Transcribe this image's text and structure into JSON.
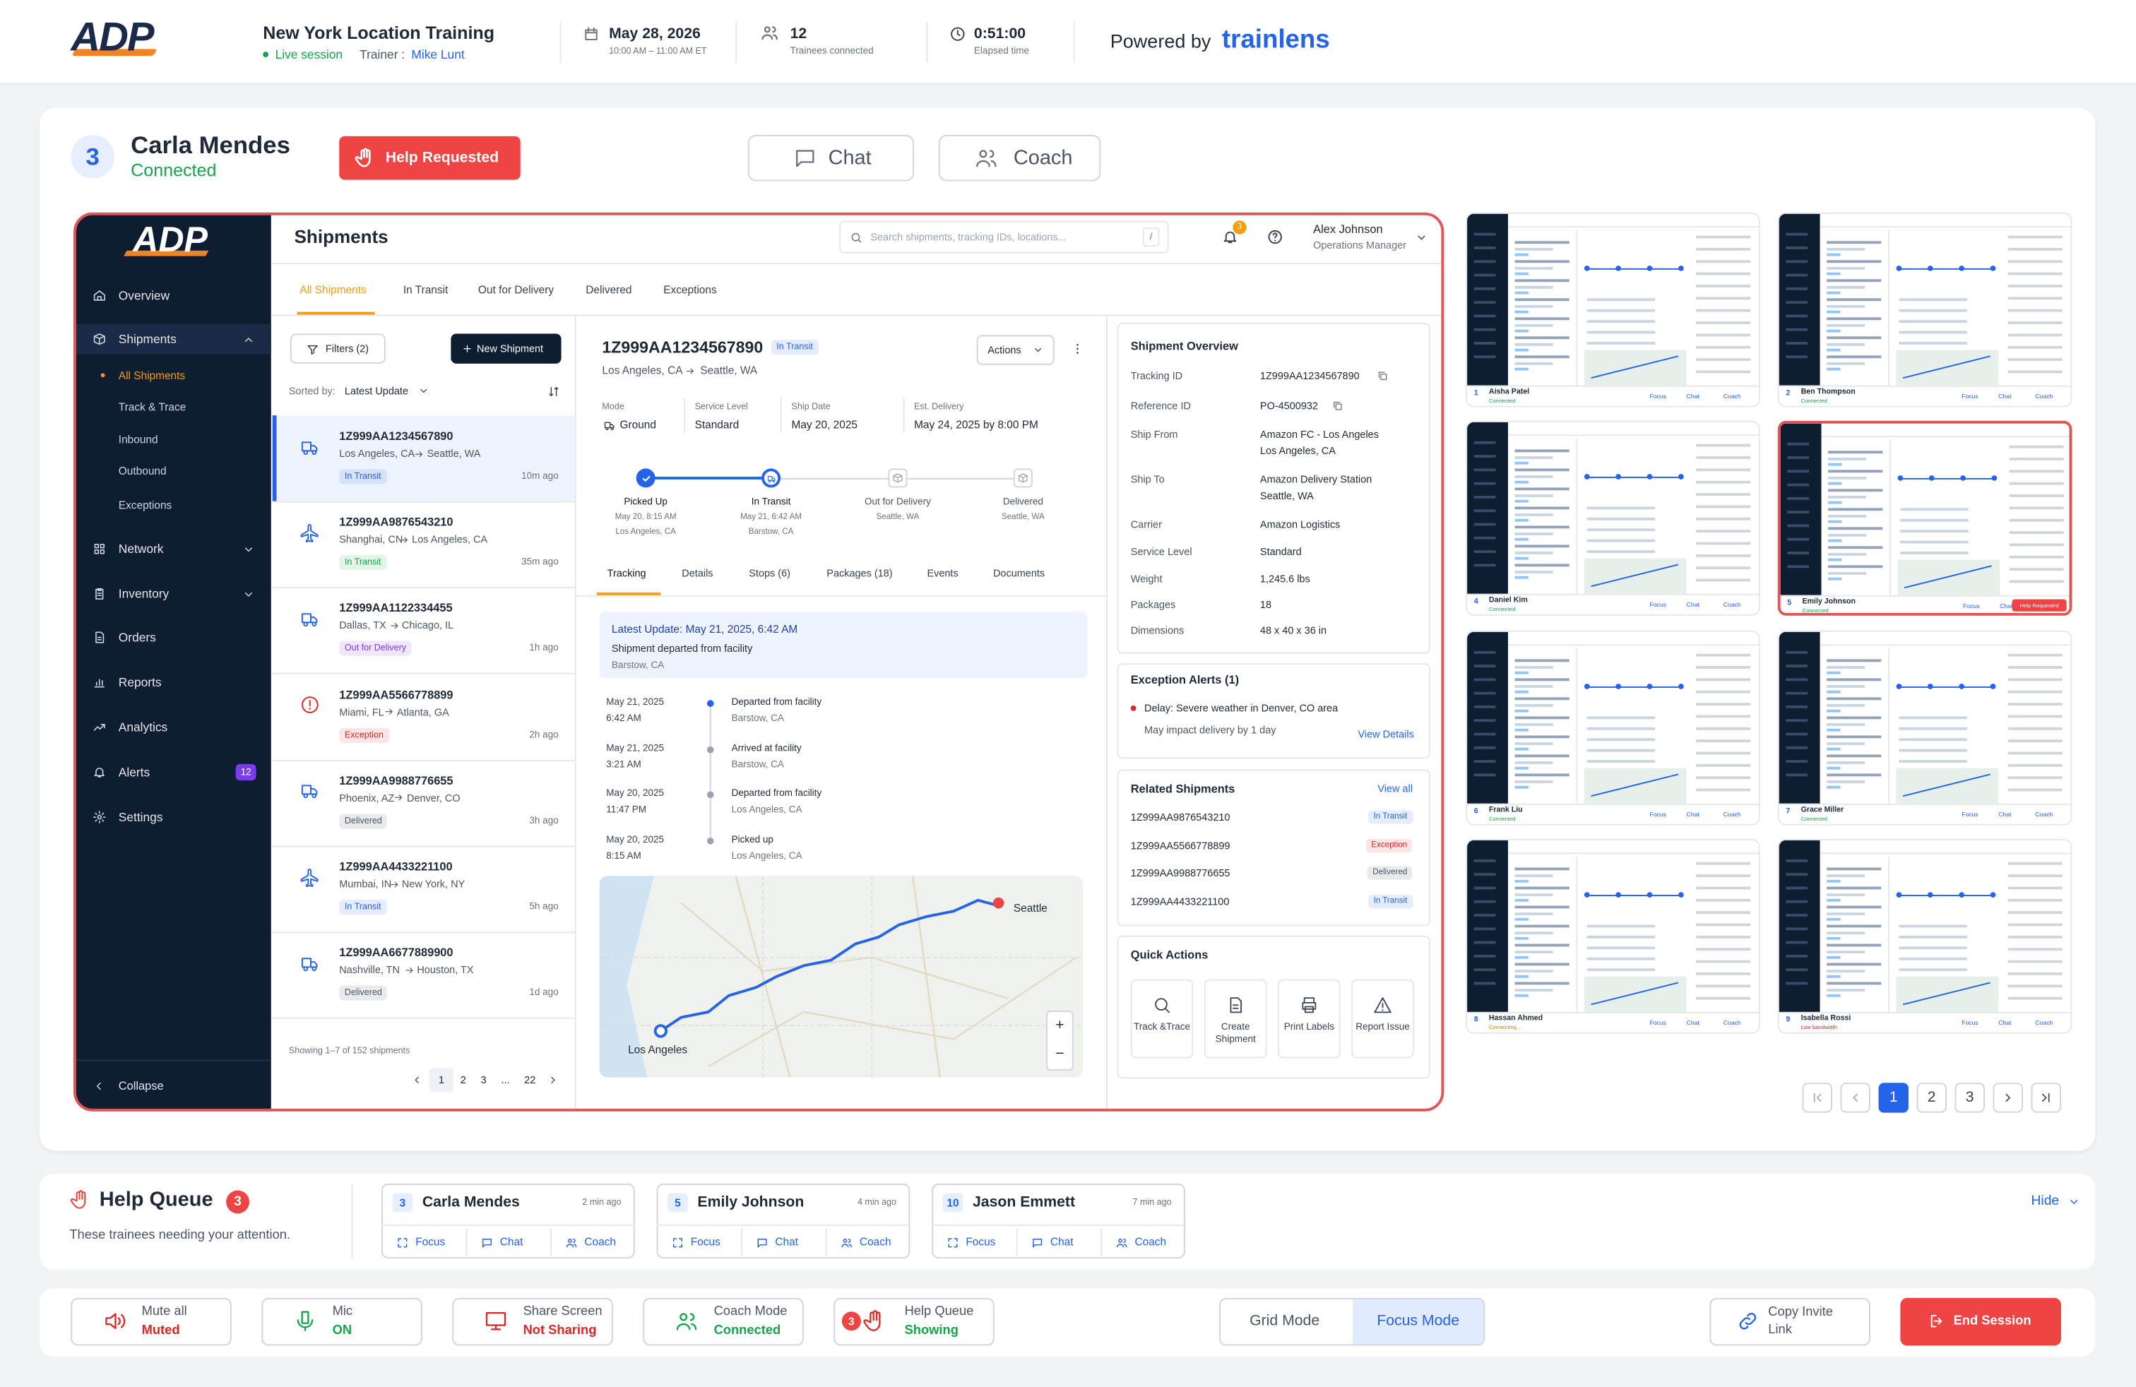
{
  "header": {
    "logo": "ADP",
    "session_title": "New York Location Training",
    "status": "Live session",
    "trainer_label": "Trainer :",
    "trainer": "Mike Lunt",
    "date": "May 28, 2026",
    "time_range": "10:00 AM – 11:00 AM ET",
    "trainees": "12",
    "trainees_label": "Trainees connected",
    "elapsed": "0:51:00",
    "elapsed_label": "Elapsed time",
    "powered_by": "Powered by",
    "brand": "trainlens"
  },
  "focus": {
    "number": "3",
    "name": "Carla Mendes",
    "status": "Connected",
    "help": "Help Requested",
    "chat": "Chat",
    "coach": "Coach"
  },
  "app": {
    "logo": "ADP",
    "nav": [
      "Overview",
      "Shipments",
      "Network",
      "Inventory",
      "Orders",
      "Reports",
      "Analytics",
      "Alerts",
      "Settings"
    ],
    "sub_nav": [
      "All Shipments",
      "Track & Trace",
      "Inbound",
      "Outbound",
      "Exceptions"
    ],
    "alerts_badge": "12",
    "collapse": "Collapse",
    "page_title": "Shipments",
    "search_placeholder": "Search shipments, tracking IDs, locations...",
    "search_key": "/",
    "notifications": "3",
    "user_name": "Alex Johnson",
    "user_role": "Operations Manager",
    "tabs": [
      "All Shipments",
      "In Transit",
      "Out for Delivery",
      "Delivered",
      "Exceptions"
    ],
    "list": {
      "filters": "Filters (2)",
      "new_shipment": "New Shipment",
      "sorted_label": "Sorted by:",
      "sorted_value": "Latest Update",
      "items": [
        {
          "id": "1Z999AA1234567890",
          "from": "Los Angeles, CA",
          "to": "Seattle, WA",
          "status": "In Transit",
          "status_color": "#2563eb",
          "time": "10m ago"
        },
        {
          "id": "1Z999AA9876543210",
          "from": "Shanghai, CN",
          "to": "Los Angeles, CA",
          "status": "In Transit",
          "status_color": "#16a34a",
          "time": "35m ago"
        },
        {
          "id": "1Z999AA1122334455",
          "from": "Dallas, TX",
          "to": "Chicago, IL",
          "status": "Out for Delivery",
          "status_color": "#7c3aed",
          "time": "1h ago"
        },
        {
          "id": "1Z999AA5566778899",
          "from": "Miami, FL",
          "to": "Atlanta, GA",
          "status": "Exception",
          "status_color": "#dc2626",
          "time": "2h ago"
        },
        {
          "id": "1Z999AA9988776655",
          "from": "Phoenix, AZ",
          "to": "Denver, CO",
          "status": "Delivered",
          "status_color": "#4b5563",
          "time": "3h ago"
        },
        {
          "id": "1Z999AA4433221100",
          "from": "Mumbai, IN",
          "to": "New York, NY",
          "status": "In Transit",
          "status_color": "#2563eb",
          "time": "5h ago"
        },
        {
          "id": "1Z999AA6677889900",
          "from": "Nashville, TN",
          "to": "Houston, TX",
          "status": "Delivered",
          "status_color": "#4b5563",
          "time": "1d ago"
        }
      ],
      "showing": "Showing 1–7 of 152 shipments",
      "pages": [
        "1",
        "2",
        "3",
        "...",
        "22"
      ]
    },
    "detail": {
      "id": "1Z999AA1234567890",
      "status": "In Transit",
      "from": "Los Angeles, CA",
      "to": "Seattle, WA",
      "actions": "Actions",
      "meta": [
        {
          "label": "Mode",
          "value": "Ground"
        },
        {
          "label": "Service Level",
          "value": "Standard"
        },
        {
          "label": "Ship Date",
          "value": "May 20, 2025"
        },
        {
          "label": "Est. Delivery",
          "value": "May 24, 2025 by 8:00 PM"
        }
      ],
      "steps": [
        {
          "title": "Picked Up",
          "date": "May 20, 8:15 AM",
          "place": "Los Angeles, CA"
        },
        {
          "title": "In Transit",
          "date": "May 21, 6:42 AM",
          "place": "Barstow, CA"
        },
        {
          "title": "Out for Delivery",
          "place": "Seattle, WA"
        },
        {
          "title": "Delivered",
          "place": "Seattle, WA"
        }
      ],
      "tabs": [
        "Tracking",
        "Details",
        "Stops (6)",
        "Packages (18)",
        "Events",
        "Documents"
      ],
      "latest": {
        "title": "Latest Update: May 21, 2025, 6:42 AM",
        "text": "Shipment departed from facility",
        "place": "Barstow, CA"
      },
      "events": [
        {
          "date": "May 21, 2025",
          "time": "6:42 AM",
          "text": "Departed from facility",
          "place": "Barstow, CA"
        },
        {
          "date": "May 21, 2025",
          "time": "3:21 AM",
          "text": "Arrived at facility",
          "place": "Barstow, CA"
        },
        {
          "date": "May 20, 2025",
          "time": "11:47 PM",
          "text": "Departed from facility",
          "place": "Los Angeles, CA"
        },
        {
          "date": "May 20, 2025",
          "time": "8:15 AM",
          "text": "Picked up",
          "place": "Los Angeles, CA"
        }
      ],
      "map": {
        "destination": "Seattle",
        "origin": "Los Angeles",
        "zoom_in": "+",
        "zoom_out": "−"
      }
    },
    "overview": {
      "title": "Shipment Overview",
      "rows": [
        {
          "label": "Tracking ID",
          "value": [
            "1Z999AA1234567890"
          ]
        },
        {
          "label": "Reference ID",
          "value": [
            "PO-4500932"
          ]
        },
        {
          "label": "Ship From",
          "value": [
            "Amazon FC - Los Angeles",
            "Los Angeles, CA"
          ]
        },
        {
          "label": "Ship To",
          "value": [
            "Amazon Delivery Station",
            "Seattle, WA"
          ]
        },
        {
          "label": "Carrier",
          "value": [
            "Amazon Logistics"
          ]
        },
        {
          "label": "Service Level",
          "value": [
            "Standard"
          ]
        },
        {
          "label": "Weight",
          "value": [
            "1,245.6 lbs"
          ]
        },
        {
          "label": "Packages",
          "value": [
            "18"
          ]
        },
        {
          "label": "Dimensions",
          "value": [
            "48 x 40 x 36 in"
          ]
        }
      ],
      "exceptions": {
        "title": "Exception Alerts (1)",
        "text": "Delay: Severe weather in Denver, CO area",
        "sub": "May impact delivery by 1 day",
        "link": "View Details"
      },
      "related": {
        "title": "Related Shipments",
        "link": "View all",
        "items": [
          {
            "id": "1Z999AA9876543210",
            "status": "In Transit",
            "status_color": "#2563eb"
          },
          {
            "id": "1Z999AA5566778899",
            "status": "Exception",
            "status_color": "#dc2626"
          },
          {
            "id": "1Z999AA9988776655",
            "status": "Delivered",
            "status_color": "#4b5563"
          },
          {
            "id": "1Z999AA4433221100",
            "status": "In Transit",
            "status_color": "#2563eb"
          }
        ]
      },
      "quick_actions": {
        "title": "Quick Actions",
        "items": [
          "Track &Trace",
          "Create Shipment",
          "Print Labels",
          "Report Issue"
        ]
      }
    }
  },
  "thumbnails": {
    "actions": [
      "Focus",
      "Chat",
      "Coach"
    ],
    "items": [
      {
        "number": "1",
        "name": "Aisha Patel",
        "status": "Connected",
        "status_color": "#16a34a"
      },
      {
        "number": "2",
        "name": "Ben Thompson",
        "status": "Connected",
        "status_color": "#16a34a"
      },
      {
        "number": "4",
        "name": "Daniel Kim",
        "status": "Connected",
        "status_color": "#16a34a"
      },
      {
        "number": "5",
        "name": "Emily Johnson",
        "status": "Connected",
        "status_color": "#16a34a",
        "highlight": true
      },
      {
        "number": "6",
        "name": "Frank Liu",
        "status": "Connected",
        "status_color": "#16a34a"
      },
      {
        "number": "7",
        "name": "Grace Miller",
        "status": "Connected",
        "status_color": "#16a34a"
      },
      {
        "number": "8",
        "name": "Hassan Ahmed",
        "status": "Connecting...",
        "status_color": "#d97706"
      },
      {
        "number": "9",
        "name": "Isabella Rossi",
        "status": "Low bandwidth",
        "status_color": "#dc2626"
      }
    ],
    "pages": [
      "1",
      "2",
      "3"
    ]
  },
  "help_queue": {
    "title": "Help Queue",
    "count": "3",
    "subtitle": "These trainees needing your attention.",
    "hide": "Hide",
    "actions": [
      "Focus",
      "Chat",
      "Coach"
    ],
    "items": [
      {
        "number": "3",
        "name": "Carla Mendes",
        "time": "2 min ago"
      },
      {
        "number": "5",
        "name": "Emily Johnson",
        "time": "4 min ago"
      },
      {
        "number": "10",
        "name": "Jason Emmett",
        "time": "7 min ago"
      }
    ]
  },
  "controls": {
    "items": [
      {
        "label": "Mute all",
        "state": "Muted",
        "state_color": "#dc2626",
        "icon_color": "#dc2626"
      },
      {
        "label": "Mic",
        "state": "ON",
        "state_color": "#16a34a",
        "icon_color": "#16a34a"
      },
      {
        "label": "Share Screen",
        "state": "Not Sharing",
        "state_color": "#dc2626",
        "icon_color": "#dc2626"
      },
      {
        "label": "Coach Mode",
        "state": "Connected",
        "state_color": "#16a34a",
        "icon_color": "#16a34a"
      },
      {
        "label": "Help Queue",
        "state": "Showing",
        "state_color": "#16a34a",
        "icon_color": "#dc2626"
      }
    ],
    "grid_mode": "Grid Mode",
    "focus_mode": "Focus Mode",
    "copy_invite": "Copy Invite Link",
    "end_session": "End Session"
  }
}
